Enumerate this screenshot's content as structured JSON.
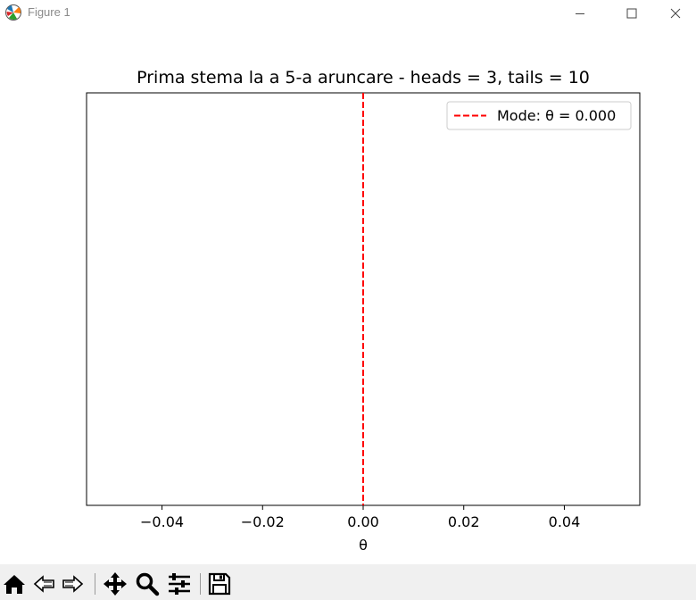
{
  "window": {
    "title": "Figure 1",
    "icon": "matplotlib-logo-icon",
    "controls": [
      "minimize-icon",
      "maximize-icon",
      "close-icon"
    ]
  },
  "chart_data": {
    "type": "line",
    "title": "Prima stema la a 5-a aruncare - heads = 3, tails = 10",
    "xlabel": "θ",
    "ylabel": "",
    "xlim": [
      -0.055,
      0.055
    ],
    "xticks": [
      -0.04,
      -0.02,
      0.0,
      0.02,
      0.04
    ],
    "xtick_labels": [
      "−0.04",
      "−0.02",
      "0.00",
      "0.02",
      "0.04"
    ],
    "yticks_visible": false,
    "grid": false,
    "legend_position": "top-right",
    "series": [
      {
        "name": "Mode: θ = 0.000",
        "kind": "vertical-line",
        "x": 0.0,
        "style": "dashed",
        "color": "#ff0000"
      }
    ]
  },
  "toolbar": {
    "tools": [
      {
        "name": "home-icon",
        "label": "Home"
      },
      {
        "name": "back-icon",
        "label": "Back"
      },
      {
        "name": "forward-icon",
        "label": "Forward"
      },
      {
        "name": "pan-icon",
        "label": "Pan"
      },
      {
        "name": "zoom-icon",
        "label": "Zoom"
      },
      {
        "name": "configure-subplots-icon",
        "label": "Subplots"
      },
      {
        "name": "save-icon",
        "label": "Save"
      }
    ]
  }
}
